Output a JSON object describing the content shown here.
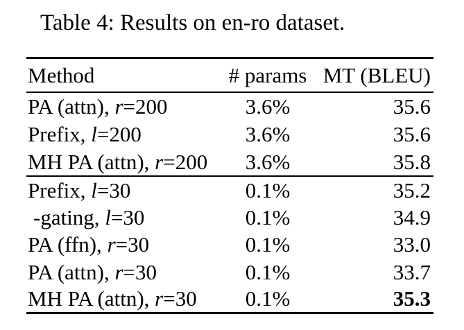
{
  "caption": "Table 4: Results on en-ro dataset.",
  "table": {
    "headers": [
      "Method",
      "# params",
      "MT (BLEU)"
    ],
    "groups": [
      {
        "rows": [
          {
            "method": [
              {
                "text": "PA (attn), "
              },
              {
                "text": "r",
                "italic": true
              },
              {
                "text": "=200"
              }
            ],
            "params": "3.6%",
            "bleu": "35.6",
            "bleu_bold": false,
            "indent": false
          },
          {
            "method": [
              {
                "text": "Prefix, "
              },
              {
                "text": "l",
                "italic": true
              },
              {
                "text": "=200"
              }
            ],
            "params": "3.6%",
            "bleu": "35.6",
            "bleu_bold": false,
            "indent": false
          },
          {
            "method": [
              {
                "text": "MH PA (attn), "
              },
              {
                "text": "r",
                "italic": true
              },
              {
                "text": "=200"
              }
            ],
            "params": "3.6%",
            "bleu": "35.8",
            "bleu_bold": false,
            "indent": false
          }
        ]
      },
      {
        "rows": [
          {
            "method": [
              {
                "text": "Prefix, "
              },
              {
                "text": "l",
                "italic": true
              },
              {
                "text": "=30"
              }
            ],
            "params": "0.1%",
            "bleu": "35.2",
            "bleu_bold": false,
            "indent": false
          },
          {
            "method": [
              {
                "text": "-gating, "
              },
              {
                "text": "l",
                "italic": true
              },
              {
                "text": "=30"
              }
            ],
            "params": "0.1%",
            "bleu": "34.9",
            "bleu_bold": false,
            "indent": true
          },
          {
            "method": [
              {
                "text": "PA (ffn), "
              },
              {
                "text": "r",
                "italic": true
              },
              {
                "text": "=30"
              }
            ],
            "params": "0.1%",
            "bleu": "33.0",
            "bleu_bold": false,
            "indent": false
          },
          {
            "method": [
              {
                "text": "PA (attn), "
              },
              {
                "text": "r",
                "italic": true
              },
              {
                "text": "=30"
              }
            ],
            "params": "0.1%",
            "bleu": "33.7",
            "bleu_bold": false,
            "indent": false
          },
          {
            "method": [
              {
                "text": "MH PA (attn), "
              },
              {
                "text": "r",
                "italic": true
              },
              {
                "text": "=30"
              }
            ],
            "params": "0.1%",
            "bleu": "35.3",
            "bleu_bold": true,
            "indent": false
          }
        ]
      }
    ]
  }
}
